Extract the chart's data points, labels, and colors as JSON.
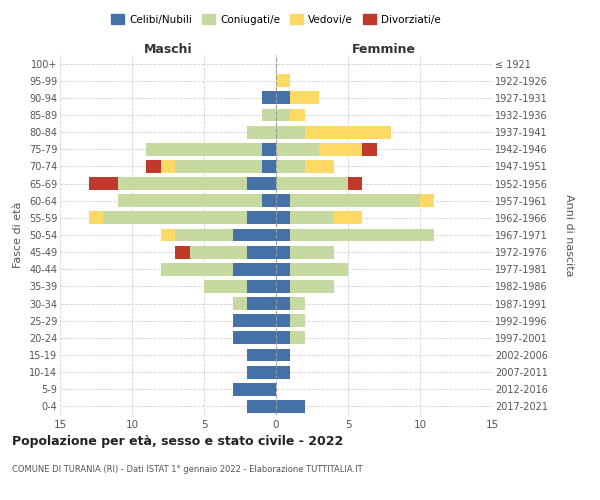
{
  "age_groups": [
    "100+",
    "95-99",
    "90-94",
    "85-89",
    "80-84",
    "75-79",
    "70-74",
    "65-69",
    "60-64",
    "55-59",
    "50-54",
    "45-49",
    "40-44",
    "35-39",
    "30-34",
    "25-29",
    "20-24",
    "15-19",
    "10-14",
    "5-9",
    "0-4"
  ],
  "birth_years": [
    "≤ 1921",
    "1922-1926",
    "1927-1931",
    "1932-1936",
    "1937-1941",
    "1942-1946",
    "1947-1951",
    "1952-1956",
    "1957-1961",
    "1962-1966",
    "1967-1971",
    "1972-1976",
    "1977-1981",
    "1982-1986",
    "1987-1991",
    "1992-1996",
    "1997-2001",
    "2002-2006",
    "2007-2011",
    "2012-2016",
    "2017-2021"
  ],
  "maschi": {
    "celibi": [
      0,
      0,
      1,
      0,
      0,
      1,
      1,
      2,
      1,
      2,
      3,
      2,
      3,
      2,
      2,
      3,
      3,
      2,
      2,
      3,
      2
    ],
    "coniugati": [
      0,
      0,
      0,
      1,
      2,
      8,
      6,
      9,
      10,
      10,
      4,
      4,
      5,
      3,
      1,
      0,
      0,
      0,
      0,
      0,
      0
    ],
    "vedovi": [
      0,
      0,
      0,
      0,
      0,
      0,
      1,
      0,
      0,
      1,
      1,
      0,
      0,
      0,
      0,
      0,
      0,
      0,
      0,
      0,
      0
    ],
    "divorziati": [
      0,
      0,
      0,
      0,
      0,
      0,
      1,
      2,
      0,
      0,
      0,
      1,
      0,
      0,
      0,
      0,
      0,
      0,
      0,
      0,
      0
    ]
  },
  "femmine": {
    "nubili": [
      0,
      0,
      1,
      0,
      0,
      0,
      0,
      0,
      1,
      1,
      1,
      1,
      1,
      1,
      1,
      1,
      1,
      1,
      1,
      0,
      2
    ],
    "coniugate": [
      0,
      0,
      0,
      1,
      2,
      3,
      2,
      5,
      9,
      3,
      10,
      3,
      4,
      3,
      1,
      1,
      1,
      0,
      0,
      0,
      0
    ],
    "vedove": [
      0,
      1,
      2,
      1,
      6,
      3,
      2,
      0,
      1,
      2,
      0,
      0,
      0,
      0,
      0,
      0,
      0,
      0,
      0,
      0,
      0
    ],
    "divorziate": [
      0,
      0,
      0,
      0,
      0,
      1,
      0,
      1,
      0,
      0,
      0,
      0,
      0,
      0,
      0,
      0,
      0,
      0,
      0,
      0,
      0
    ]
  },
  "colors": {
    "celibi_nubili": "#4472a8",
    "coniugati": "#c5d9a0",
    "vedovi": "#ffd966",
    "divorziati": "#c0392b"
  },
  "title": "Popolazione per età, sesso e stato civile - 2022",
  "subtitle": "COMUNE DI TURANIA (RI) - Dati ISTAT 1° gennaio 2022 - Elaborazione TUTTITALIA.IT",
  "xlabel_left": "Maschi",
  "xlabel_right": "Femmine",
  "ylabel_left": "Fasce di età",
  "ylabel_right": "Anni di nascita",
  "xlim": 15,
  "legend_labels": [
    "Celibi/Nubili",
    "Coniugati/e",
    "Vedovi/e",
    "Divorziati/e"
  ],
  "background_color": "#ffffff",
  "grid_color": "#cccccc"
}
